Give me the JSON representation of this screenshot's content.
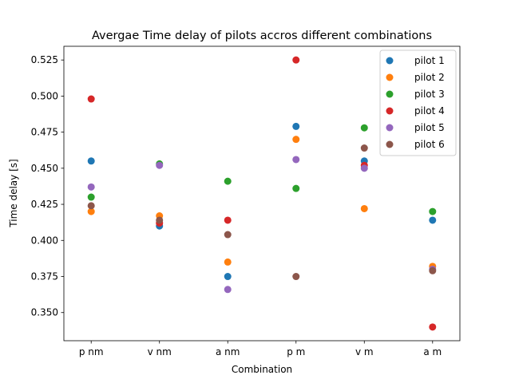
{
  "chart_data": {
    "type": "scatter",
    "title": "Avergae Time delay of pilots accros different combinations",
    "xlabel": "Combination",
    "ylabel": "Time delay [s]",
    "categories": [
      "p nm",
      "v nm",
      "a nm",
      "p m",
      "v m",
      "a m"
    ],
    "ylim": [
      0.3305,
      0.5345
    ],
    "yticks": [
      0.35,
      0.375,
      0.4,
      0.425,
      0.45,
      0.475,
      0.5,
      0.525
    ],
    "ytick_labels": [
      "0.350",
      "0.375",
      "0.400",
      "0.425",
      "0.450",
      "0.475",
      "0.500",
      "0.525"
    ],
    "grid": false,
    "legend_position": "top-right",
    "series": [
      {
        "name": "pilot 1",
        "color": "#1f77b4",
        "values": [
          0.455,
          0.41,
          0.375,
          0.479,
          0.455,
          0.414
        ]
      },
      {
        "name": "pilot 2",
        "color": "#ff7f0e",
        "values": [
          0.42,
          0.417,
          0.385,
          0.47,
          0.422,
          0.382
        ]
      },
      {
        "name": "pilot 3",
        "color": "#2ca02c",
        "values": [
          0.43,
          0.453,
          0.441,
          0.436,
          0.478,
          0.42
        ]
      },
      {
        "name": "pilot 4",
        "color": "#d62728",
        "values": [
          0.498,
          0.412,
          0.414,
          0.525,
          0.452,
          0.34
        ]
      },
      {
        "name": "pilot 5",
        "color": "#9467bd",
        "values": [
          0.437,
          0.452,
          0.366,
          0.456,
          0.45,
          0.38
        ]
      },
      {
        "name": "pilot 6",
        "color": "#8c564b",
        "values": [
          0.424,
          0.414,
          0.404,
          0.375,
          0.464,
          0.379
        ]
      }
    ]
  }
}
